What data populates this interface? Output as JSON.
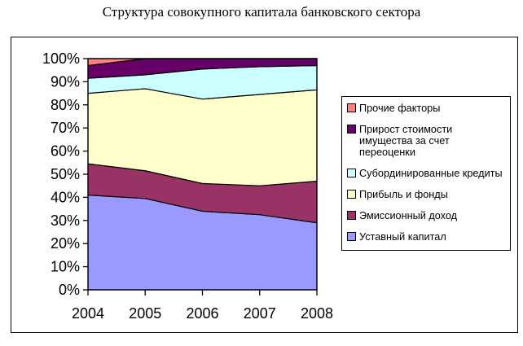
{
  "title": "Структура совокупного капитала банковского сектора",
  "chart_data": {
    "type": "area",
    "stacking": "percent",
    "title": "Структура совокупного капитала банковского сектора",
    "categories": [
      "2004",
      "2005",
      "2006",
      "2007",
      "2008"
    ],
    "series": [
      {
        "name": "Уставный капитал",
        "color": "#9999FF",
        "values": [
          41,
          39.5,
          34,
          32.5,
          29
        ]
      },
      {
        "name": "Эмиссионный доход",
        "color": "#993366",
        "values": [
          13.5,
          12,
          12,
          12.5,
          18
        ]
      },
      {
        "name": "Прибыль и фонды",
        "color": "#FFFFCC",
        "values": [
          30.5,
          35.5,
          36.5,
          39.5,
          39.5
        ]
      },
      {
        "name": "Субординированные кредиты",
        "color": "#CCFFFF",
        "values": [
          6.5,
          6,
          13,
          12,
          10.5
        ]
      },
      {
        "name": "Прирост стоимости имущества за счет переоценки",
        "color": "#660066",
        "values": [
          5.5,
          7,
          4.5,
          3.5,
          3
        ]
      },
      {
        "name": "Прочие факторы",
        "color": "#FF8080",
        "values": [
          3,
          0,
          0,
          0,
          0
        ]
      }
    ],
    "xlabel": "",
    "ylabel": "",
    "ylim": [
      0,
      100
    ],
    "y_ticks": [
      "0%",
      "10%",
      "20%",
      "30%",
      "40%",
      "50%",
      "60%",
      "70%",
      "80%",
      "90%",
      "100%"
    ],
    "grid": false,
    "legend_position": "right",
    "legend_order": "reverse-of-stacking",
    "outline_color": "#000000",
    "plot_background": "#FFFFFF"
  }
}
